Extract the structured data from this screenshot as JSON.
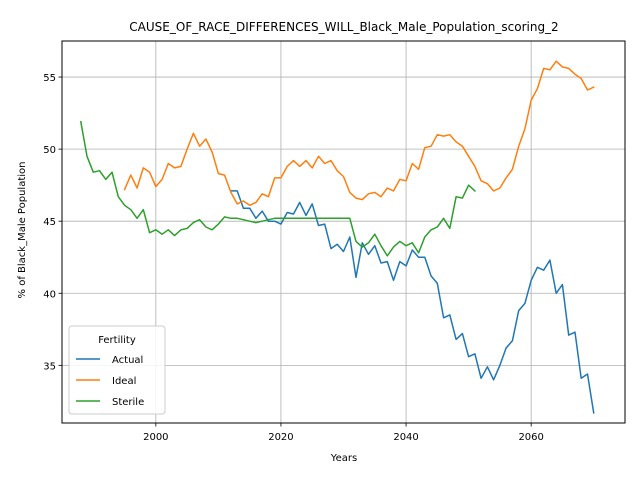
{
  "chart_data": {
    "type": "line",
    "title": "CAUSE_OF_RACE_DIFFERENCES_WILL_Black_Male_Population_scoring_2",
    "xlabel": "Years",
    "ylabel": "% of Black_Male Population",
    "xlim": [
      1985,
      2075
    ],
    "ylim": [
      31,
      57.5
    ],
    "xticks": [
      2000,
      2020,
      2040,
      2060
    ],
    "yticks": [
      35,
      40,
      45,
      50,
      55
    ],
    "grid": true,
    "legend": {
      "title": "Fertility",
      "placement": "lower-left"
    },
    "series": [
      {
        "name": "Actual",
        "color": "#1f77b4",
        "x": [
          2012,
          2013,
          2014,
          2015,
          2016,
          2017,
          2018,
          2019,
          2020,
          2021,
          2022,
          2023,
          2024,
          2025,
          2026,
          2027,
          2028,
          2029,
          2030,
          2031,
          2032,
          2033,
          2034,
          2035,
          2036,
          2037,
          2038,
          2039,
          2040,
          2041,
          2042,
          2043,
          2044,
          2045,
          2046,
          2047,
          2048,
          2049,
          2050,
          2051,
          2052,
          2053,
          2054,
          2055,
          2056,
          2057,
          2058,
          2059,
          2060,
          2061,
          2062,
          2063,
          2064,
          2065,
          2066,
          2067,
          2068,
          2069,
          2070
        ],
        "y": [
          47.1,
          47.1,
          45.9,
          45.9,
          45.2,
          45.7,
          45.0,
          45.0,
          44.8,
          45.6,
          45.5,
          46.3,
          45.4,
          46.2,
          44.7,
          44.8,
          43.1,
          43.4,
          42.9,
          43.9,
          41.1,
          43.5,
          42.7,
          43.3,
          42.1,
          42.2,
          40.9,
          42.2,
          41.9,
          43.0,
          42.5,
          42.5,
          41.2,
          40.7,
          38.3,
          38.5,
          36.8,
          37.2,
          35.6,
          35.8,
          34.1,
          34.9,
          34.0,
          35.0,
          36.2,
          36.7,
          38.8,
          39.3,
          40.9,
          41.8,
          41.6,
          42.3,
          40.0,
          40.6,
          37.1,
          37.3,
          34.1,
          34.4,
          31.7
        ]
      },
      {
        "name": "Ideal",
        "color": "#ff7f0e",
        "x": [
          1995,
          1996,
          1997,
          1998,
          1999,
          2000,
          2001,
          2002,
          2003,
          2004,
          2005,
          2006,
          2007,
          2008,
          2009,
          2010,
          2011,
          2012,
          2013,
          2014,
          2015,
          2016,
          2017,
          2018,
          2019,
          2020,
          2021,
          2022,
          2023,
          2024,
          2025,
          2026,
          2027,
          2028,
          2029,
          2030,
          2031,
          2032,
          2033,
          2034,
          2035,
          2036,
          2037,
          2038,
          2039,
          2040,
          2041,
          2042,
          2043,
          2044,
          2045,
          2046,
          2047,
          2048,
          2049,
          2050,
          2051,
          2052,
          2053,
          2054,
          2055,
          2056,
          2057,
          2058,
          2059,
          2060,
          2061,
          2062,
          2063,
          2064,
          2065,
          2066,
          2067,
          2068,
          2069,
          2070
        ],
        "y": [
          47.2,
          48.2,
          47.3,
          48.7,
          48.4,
          47.4,
          47.9,
          49.0,
          48.7,
          48.8,
          50.0,
          51.1,
          50.2,
          50.7,
          49.8,
          48.3,
          48.2,
          47.0,
          46.2,
          46.4,
          46.1,
          46.3,
          46.9,
          46.7,
          48.0,
          48.0,
          48.8,
          49.2,
          48.8,
          49.2,
          48.7,
          49.5,
          49.0,
          49.2,
          48.5,
          48.1,
          47.0,
          46.6,
          46.5,
          46.9,
          47.0,
          46.7,
          47.3,
          47.1,
          47.9,
          47.8,
          49.0,
          48.6,
          50.1,
          50.2,
          51.0,
          50.9,
          51.0,
          50.5,
          50.2,
          49.5,
          48.8,
          47.8,
          47.6,
          47.1,
          47.3,
          48.0,
          48.6,
          50.2,
          51.4,
          53.4,
          54.2,
          55.6,
          55.5,
          56.1,
          55.7,
          55.6,
          55.2,
          54.9,
          54.1,
          54.3
        ]
      },
      {
        "name": "Sterile",
        "color": "#2ca02c",
        "x": [
          1988,
          1989,
          1990,
          1991,
          1992,
          1993,
          1994,
          1995,
          1996,
          1997,
          1998,
          1999,
          2000,
          2001,
          2002,
          2003,
          2004,
          2005,
          2006,
          2007,
          2008,
          2009,
          2010,
          2011,
          2012,
          2013,
          2014,
          2015,
          2016,
          2017,
          2018,
          2019,
          2020,
          2021,
          2022,
          2023,
          2024,
          2025,
          2026,
          2027,
          2028,
          2029,
          2030,
          2031,
          2032,
          2033,
          2034,
          2035,
          2036,
          2037,
          2038,
          2039,
          2040,
          2041,
          2042,
          2043,
          2044,
          2045,
          2046,
          2047,
          2048,
          2049,
          2050,
          2051
        ],
        "y": [
          51.9,
          49.5,
          48.4,
          48.5,
          47.9,
          48.4,
          46.7,
          46.1,
          45.8,
          45.2,
          45.8,
          44.2,
          44.4,
          44.1,
          44.4,
          44.0,
          44.4,
          44.5,
          44.9,
          45.1,
          44.6,
          44.4,
          44.8,
          45.3,
          45.2,
          45.2,
          45.1,
          45.0,
          44.9,
          45.0,
          45.1,
          45.2,
          45.2,
          45.2,
          45.2,
          45.2,
          45.2,
          45.2,
          45.2,
          45.2,
          45.2,
          45.2,
          45.2,
          45.2,
          43.6,
          43.2,
          43.5,
          44.1,
          43.3,
          42.6,
          43.2,
          43.6,
          43.3,
          43.5,
          42.8,
          43.9,
          44.4,
          44.6,
          45.2,
          44.5,
          46.7,
          46.6,
          47.5,
          47.1
        ]
      }
    ]
  }
}
